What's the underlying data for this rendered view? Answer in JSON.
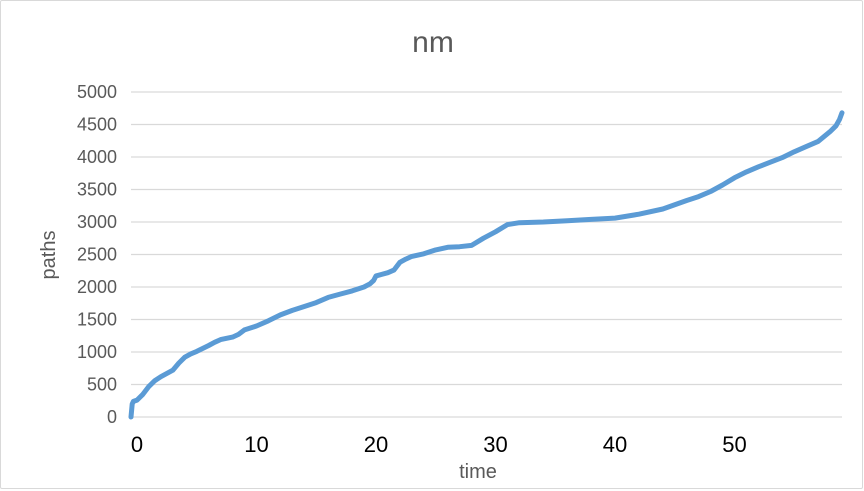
{
  "chart_data": {
    "type": "line",
    "title": "nm",
    "xlabel": "time",
    "ylabel": "paths",
    "xlim": [
      -0.5,
      59
    ],
    "ylim": [
      0,
      5000
    ],
    "yticks": [
      0,
      500,
      1000,
      1500,
      2000,
      2500,
      3000,
      3500,
      4000,
      4500,
      5000
    ],
    "xticks": [
      0,
      10,
      20,
      30,
      40,
      50
    ],
    "grid": true,
    "line_color": "#5b9bd5",
    "series": [
      {
        "x": [
          -0.5,
          -0.4,
          -0.3,
          0,
          0.5,
          1,
          1.5,
          2,
          3,
          3.5,
          4,
          4.5,
          5,
          6,
          6.5,
          7,
          8,
          8.5,
          9,
          10,
          11,
          12,
          13,
          14,
          15,
          16,
          17,
          18,
          19,
          19.5,
          19.8,
          20,
          21,
          21.5,
          22,
          22.5,
          23,
          24,
          25,
          26,
          27,
          28,
          29,
          30,
          31,
          32,
          34,
          36,
          38,
          40,
          42,
          44,
          46,
          47,
          48,
          49,
          50,
          51,
          52,
          53,
          54,
          55,
          56,
          57,
          58,
          58.5,
          58.8,
          59
        ],
        "y": [
          0,
          200,
          240,
          260,
          350,
          470,
          560,
          620,
          720,
          830,
          920,
          970,
          1010,
          1100,
          1150,
          1190,
          1230,
          1270,
          1340,
          1400,
          1480,
          1570,
          1640,
          1700,
          1760,
          1840,
          1890,
          1940,
          2000,
          2050,
          2100,
          2170,
          2220,
          2260,
          2380,
          2430,
          2470,
          2510,
          2570,
          2610,
          2620,
          2640,
          2750,
          2850,
          2960,
          2990,
          3000,
          3020,
          3040,
          3060,
          3120,
          3200,
          3330,
          3390,
          3470,
          3570,
          3680,
          3770,
          3850,
          3920,
          3990,
          4080,
          4160,
          4240,
          4390,
          4480,
          4580,
          4680
        ]
      }
    ]
  }
}
